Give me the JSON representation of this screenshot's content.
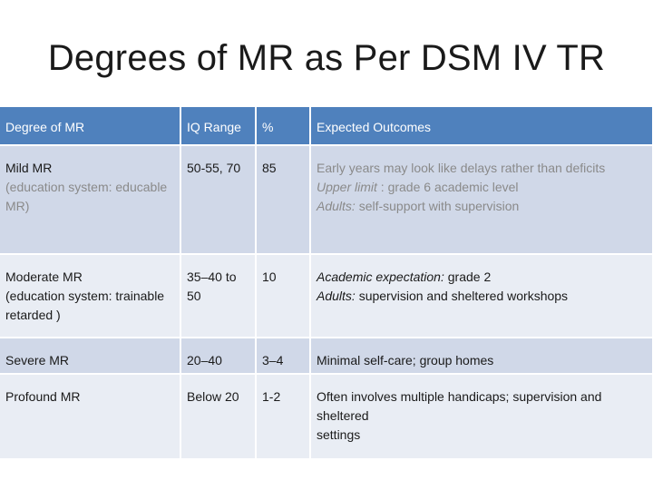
{
  "title": "Degrees of MR as Per DSM IV TR",
  "table": {
    "headers": [
      "Degree of MR",
      "IQ Range",
      "%",
      "Expected Outcomes"
    ],
    "rows": [
      {
        "degree": "Mild MR",
        "degree_sub": "(education system: educable MR)",
        "iq": "50-55, 70",
        "pct": "85",
        "outcome_main": "Early years may look like delays rather than deficits",
        "upper_label": "Upper limit",
        "upper_text": " : grade 6 academic level",
        "adults_label": "Adults:",
        "adults_text": " self-support with supervision"
      },
      {
        "degree": "Moderate MR",
        "degree_sub": "(education system: trainable retarded )",
        "iq": "35–40 to 50",
        "pct": "10",
        "academic_label": "Academic expectation:",
        "academic_text": " grade 2",
        "adults_label": "Adults:",
        "adults_text": " supervision and sheltered workshops"
      },
      {
        "degree": "Severe MR",
        "iq": "20–40",
        "pct": "3–4",
        "outcome": "Minimal self-care; group homes"
      },
      {
        "degree": "Profound MR",
        "iq": "Below 20",
        "pct": "1-2",
        "outcome_line1": "Often involves multiple handicaps; supervision and sheltered",
        "outcome_line2": "settings"
      }
    ]
  }
}
